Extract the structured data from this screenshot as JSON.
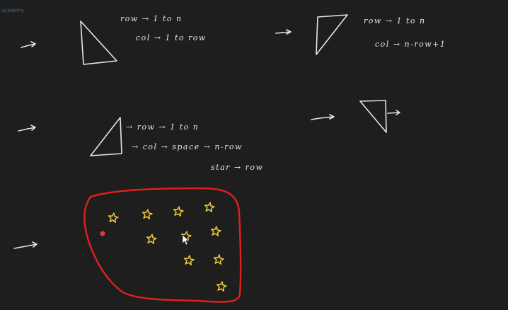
{
  "app": {
    "brand": "academy"
  },
  "colors": {
    "background": "#1e1e1e",
    "ink": "#e6e6e6",
    "stars": "#e8c23a",
    "lasso": "#e0201c",
    "laser": "#d84040"
  },
  "notes": {
    "block1": {
      "line1": "row → 1 to n",
      "line2": "col → 1 to row"
    },
    "block2": {
      "line1": "row → 1 to n",
      "line2": "col → n-row+1"
    },
    "block3": {
      "line1": "→ row → 1 to n",
      "line2": "→ col → space → n-row",
      "line3": "star → row"
    }
  },
  "cursor": {
    "icon": "mouse-pointer-icon"
  }
}
